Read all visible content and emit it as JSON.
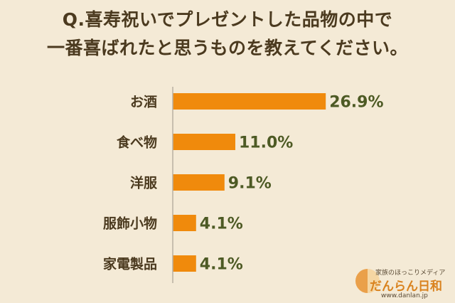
{
  "chart_data": {
    "type": "bar",
    "orientation": "horizontal",
    "title": "Q.喜寿祝いでプレゼントした品物の中で一番喜ばれたと思うものを教えてください。",
    "title_lines": [
      "Q.喜寿祝いでプレゼントした品物の中で",
      "一番喜ばれたと思うものを教えてください。"
    ],
    "categories": [
      "お酒",
      "食べ物",
      "洋服",
      "服飾小物",
      "家電製品"
    ],
    "values": [
      26.9,
      11.0,
      9.1,
      4.1,
      4.1
    ],
    "value_labels": [
      "26.9%",
      "11.0%",
      "9.1%",
      "4.1%",
      "4.1%"
    ],
    "xlim": [
      0,
      30
    ],
    "grid": false,
    "legend": "none",
    "bar_color": "#f08a0c",
    "axis_color": "#b8b0a0",
    "value_label_color": "#4d5a24",
    "title_color": "#4b3a1f"
  },
  "brand": {
    "tagline": "家族のほっこりメディア",
    "name": "だんらん日和",
    "url": "www.danlan.jp"
  }
}
